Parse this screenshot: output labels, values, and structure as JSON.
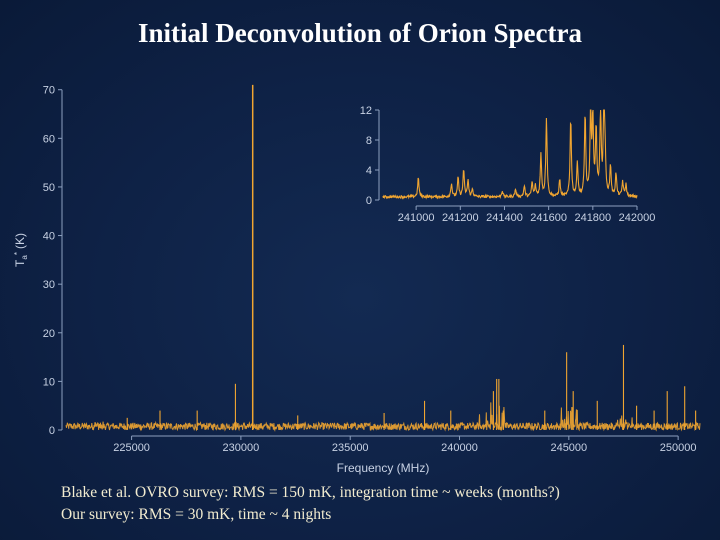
{
  "slide": {
    "title": "Initial Deconvolution of Orion Spectra",
    "caption_line1": "Blake et al. OVRO survey:  RMS = 150 mK, integration time ~ weeks (months?)",
    "caption_line2": "Our survey:  RMS = 30 mK, time ~ 4 nights"
  },
  "colors": {
    "trace": "#f0a531",
    "axis": "#8da0bf",
    "tick_text": "#c8d2e4",
    "background": "#0e2145"
  },
  "chart_data": [
    {
      "type": "line",
      "title": "",
      "xlabel": "Frequency (MHz)",
      "ylabel_main": "T",
      "ylabel_sub": "a",
      "ylabel_sup": "*",
      "ylabel_unit": "(K)",
      "xlim": [
        222000,
        251000
      ],
      "ylim": [
        0,
        72
      ],
      "xticks": [
        225000,
        230000,
        235000,
        240000,
        245000,
        250000
      ],
      "xtick_labels": [
        "225000",
        "230000",
        "235000",
        "240000",
        "245000",
        "250000"
      ],
      "yticks": [
        0,
        10,
        20,
        30,
        40,
        50,
        60,
        70
      ],
      "ytick_labels": [
        "0",
        "10",
        "20",
        "30",
        "40",
        "50",
        "60",
        "70"
      ],
      "grid": false,
      "peaks": [
        {
          "x": 230540,
          "y": 71
        },
        {
          "x": 228000,
          "y": 4
        },
        {
          "x": 229750,
          "y": 9.5
        },
        {
          "x": 232600,
          "y": 3
        },
        {
          "x": 226300,
          "y": 4
        },
        {
          "x": 224800,
          "y": 2.5
        },
        {
          "x": 236550,
          "y": 3.5
        },
        {
          "x": 238400,
          "y": 6
        },
        {
          "x": 239600,
          "y": 4
        },
        {
          "x": 241700,
          "y": 10.5
        },
        {
          "x": 241800,
          "y": 10.5
        },
        {
          "x": 241550,
          "y": 8
        },
        {
          "x": 242000,
          "y": 4
        },
        {
          "x": 243900,
          "y": 4
        },
        {
          "x": 244900,
          "y": 16
        },
        {
          "x": 245200,
          "y": 8
        },
        {
          "x": 246300,
          "y": 6
        },
        {
          "x": 247500,
          "y": 17.5
        },
        {
          "x": 248100,
          "y": 5
        },
        {
          "x": 248900,
          "y": 4
        },
        {
          "x": 249500,
          "y": 8
        },
        {
          "x": 250300,
          "y": 9
        },
        {
          "x": 250800,
          "y": 4
        }
      ],
      "clusters": [
        {
          "x_start": 240900,
          "x_end": 242100,
          "height": 6
        },
        {
          "x_start": 244600,
          "x_end": 245400,
          "height": 5
        },
        {
          "x_start": 223300,
          "x_end": 223700,
          "height": 2
        },
        {
          "x_start": 247000,
          "x_end": 248000,
          "height": 3
        }
      ],
      "noise_level": 1.5
    },
    {
      "type": "line",
      "title": "",
      "xlim": [
        240850,
        242000
      ],
      "ylim": [
        0,
        12
      ],
      "xticks": [
        241000,
        241200,
        241400,
        241600,
        241800,
        242000
      ],
      "xtick_labels": [
        "241000",
        "241200",
        "241400",
        "241600",
        "241800",
        "242000"
      ],
      "yticks": [
        0,
        4,
        8,
        12
      ],
      "ytick_labels": [
        "0",
        "4",
        "8",
        "12"
      ],
      "grid": false,
      "peaks": [
        {
          "x": 241010,
          "y": 2.5
        },
        {
          "x": 241160,
          "y": 1.8
        },
        {
          "x": 241190,
          "y": 2.5
        },
        {
          "x": 241215,
          "y": 3.6
        },
        {
          "x": 241235,
          "y": 2.2
        },
        {
          "x": 241255,
          "y": 1.0
        },
        {
          "x": 241390,
          "y": 0.8
        },
        {
          "x": 241450,
          "y": 1.0
        },
        {
          "x": 241490,
          "y": 1.4
        },
        {
          "x": 241525,
          "y": 1.9
        },
        {
          "x": 241540,
          "y": 1.4
        },
        {
          "x": 241565,
          "y": 5.6
        },
        {
          "x": 241590,
          "y": 10.5
        },
        {
          "x": 241650,
          "y": 2.2
        },
        {
          "x": 241700,
          "y": 10.3
        },
        {
          "x": 241730,
          "y": 4.5
        },
        {
          "x": 241765,
          "y": 10.8
        },
        {
          "x": 241790,
          "y": 10.9
        },
        {
          "x": 241800,
          "y": 10.1
        },
        {
          "x": 241815,
          "y": 8.9
        },
        {
          "x": 241835,
          "y": 11.5
        },
        {
          "x": 241850,
          "y": 11.5
        },
        {
          "x": 241855,
          "y": 5.0
        },
        {
          "x": 241880,
          "y": 4.0
        },
        {
          "x": 241905,
          "y": 3.0
        },
        {
          "x": 241935,
          "y": 2.0
        },
        {
          "x": 241950,
          "y": 1.6
        }
      ]
    }
  ]
}
